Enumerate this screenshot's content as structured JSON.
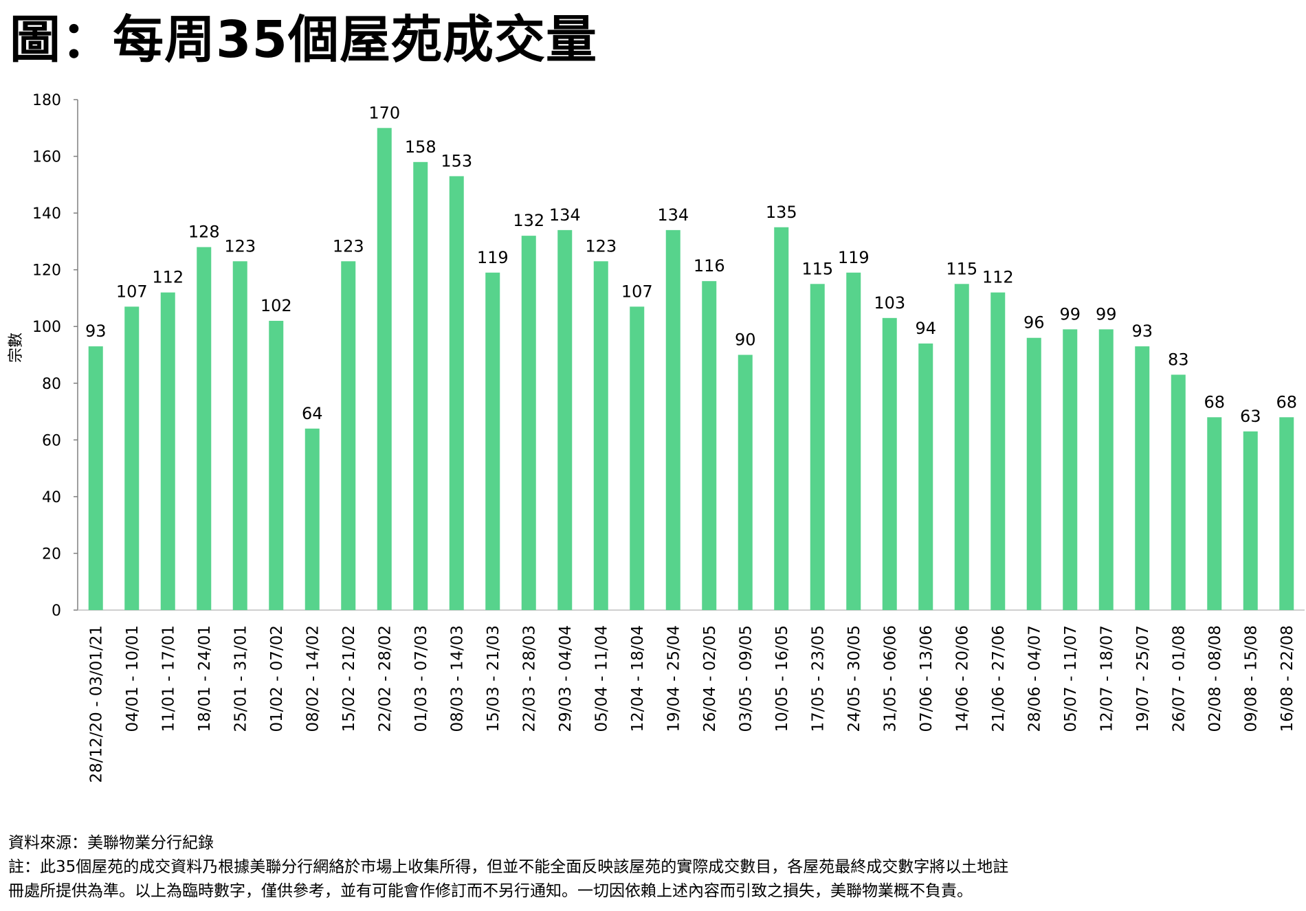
{
  "chart_data": {
    "type": "bar",
    "title": "圖：每周35個屋苑成交量",
    "xlabel": "",
    "ylabel": "宗數",
    "ylim": [
      0,
      180
    ],
    "yticks": [
      0,
      20,
      40,
      60,
      80,
      100,
      120,
      140,
      160,
      180
    ],
    "grid": false,
    "bar_color": "#57D38C",
    "categories": [
      "28/12/20 - 03/01/21",
      "04/01 - 10/01",
      "11/01 - 17/01",
      "18/01 - 24/01",
      "25/01 - 31/01",
      "01/02 - 07/02",
      "08/02 - 14/02",
      "15/02 - 21/02",
      "22/02 - 28/02",
      "01/03 - 07/03",
      "08/03 - 14/03",
      "15/03 - 21/03",
      "22/03 - 28/03",
      "29/03 - 04/04",
      "05/04 - 11/04",
      "12/04 - 18/04",
      "19/04 - 25/04",
      "26/04 - 02/05",
      "03/05 - 09/05",
      "10/05 - 16/05",
      "17/05 - 23/05",
      "24/05 - 30/05",
      "31/05 - 06/06",
      "07/06 - 13/06",
      "14/06 - 20/06",
      "21/06 - 27/06",
      "28/06 - 04/07",
      "05/07 - 11/07",
      "12/07 - 18/07",
      "19/07 - 25/07",
      "26/07 - 01/08",
      "02/08 - 08/08",
      "09/08 - 15/08",
      "16/08 - 22/08"
    ],
    "values": [
      93,
      107,
      112,
      128,
      123,
      102,
      64,
      123,
      170,
      158,
      153,
      119,
      132,
      134,
      123,
      107,
      134,
      116,
      90,
      135,
      115,
      119,
      103,
      94,
      115,
      112,
      96,
      99,
      99,
      93,
      83,
      68,
      63,
      68
    ]
  },
  "footer": {
    "source": "資料來源：美聯物業分行紀錄",
    "note_line1": "註：此35個屋苑的成交資料乃根據美聯分行網絡於市場上收集所得，但並不能全面反映該屋苑的實際成交數目，各屋苑最終成交數字將以土地註",
    "note_line2": "冊處所提供為準。以上為臨時數字，僅供參考，並有可能會作修訂而不另行通知。一切因依賴上述內容而引致之損失，美聯物業概不負責。"
  }
}
